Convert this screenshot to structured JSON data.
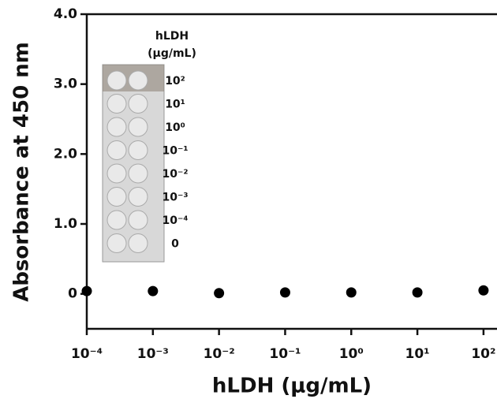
{
  "chart_data": {
    "type": "scatter",
    "x_label": "hLDH (μg/mL)",
    "y_label": "Absorbance at 450 nm",
    "x": [
      0.0001,
      0.001,
      0.01,
      0.1,
      1,
      10,
      100
    ],
    "series": [
      {
        "color": "#000000",
        "values": [
          0.04,
          0.04,
          0.01,
          0.02,
          0.02,
          0.02,
          0.05
        ]
      }
    ],
    "log_x": true,
    "xlim": [
      0.0001,
      160
    ],
    "xticks": [
      {
        "value": 0.0001,
        "label": "10⁻⁴"
      },
      {
        "value": 0.001,
        "label": "10⁻³"
      },
      {
        "value": 0.01,
        "label": "10⁻²"
      },
      {
        "value": 0.1,
        "label": "10⁻¹"
      },
      {
        "value": 1,
        "label": "10⁰"
      },
      {
        "value": 10,
        "label": "10¹"
      },
      {
        "value": 100,
        "label": "10²"
      }
    ],
    "ylim": [
      -0.5,
      4.0
    ],
    "yticks": [
      0,
      {
        "value": 1,
        "label": "1.0"
      },
      {
        "value": 2,
        "label": "2.0"
      },
      {
        "value": 3,
        "label": "3.0"
      },
      {
        "value": 4,
        "label": "4.0"
      }
    ],
    "inset": {
      "title": "hLDH",
      "unit": "(μg/mL)",
      "labels": [
        "10²",
        "10¹",
        "10⁰",
        "10⁻¹",
        "10⁻²",
        "10⁻³",
        "10⁻⁴",
        "0"
      ]
    }
  }
}
